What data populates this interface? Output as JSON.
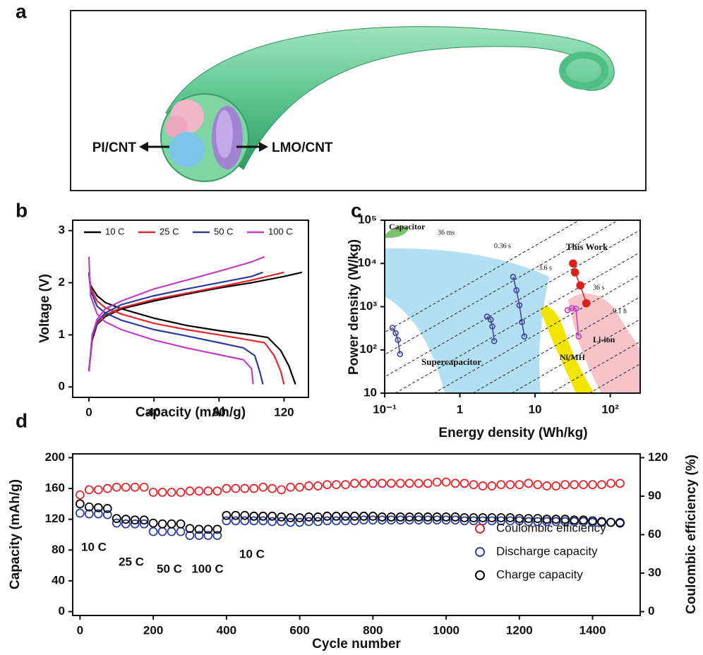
{
  "illustration": {
    "label": "a",
    "texts": [
      "PI/CNT",
      "LMO/CNT"
    ]
  },
  "chart_data": [
    {
      "type": "line",
      "panel": "b",
      "xlabel": "Capacity (mAh/g)",
      "ylabel": "Voltage (V)",
      "xlim": [
        -10,
        135
      ],
      "ylim": [
        -0.2,
        3.2
      ],
      "xticks": [
        0,
        40,
        80,
        120
      ],
      "yticks": [
        0,
        1,
        2,
        3
      ],
      "legend": "upper left",
      "series": [
        {
          "name": "10 C",
          "color": "#000000",
          "curves": [
            {
              "x": [
                0,
                1,
                5,
                10,
                20,
                40,
                60,
                80,
                100,
                110,
                118,
                123,
                127
              ],
              "values": [
                2.2,
                1.95,
                1.75,
                1.62,
                1.5,
                1.32,
                1.18,
                1.08,
                1.0,
                0.95,
                0.7,
                0.4,
                0.05
              ]
            },
            {
              "x": [
                0,
                2,
                5,
                10,
                20,
                40,
                60,
                80,
                100,
                120,
                131
              ],
              "values": [
                0.3,
                0.9,
                1.2,
                1.35,
                1.5,
                1.65,
                1.78,
                1.9,
                2.0,
                2.12,
                2.2
              ]
            }
          ]
        },
        {
          "name": "25 C",
          "color": "#e3262a",
          "curves": [
            {
              "x": [
                0,
                1,
                5,
                10,
                20,
                40,
                60,
                80,
                95,
                108,
                114,
                118,
                120
              ],
              "values": [
                2.2,
                1.9,
                1.65,
                1.52,
                1.4,
                1.22,
                1.1,
                1.0,
                0.92,
                0.85,
                0.6,
                0.3,
                0.05
              ]
            },
            {
              "x": [
                0,
                2,
                5,
                10,
                20,
                40,
                60,
                80,
                100,
                120
              ],
              "values": [
                0.3,
                0.95,
                1.22,
                1.38,
                1.52,
                1.68,
                1.8,
                1.92,
                2.05,
                2.2
              ]
            }
          ]
        },
        {
          "name": "50 C",
          "color": "#2b3c9a",
          "curves": [
            {
              "x": [
                0,
                1,
                5,
                10,
                20,
                40,
                60,
                80,
                95,
                102,
                105,
                107
              ],
              "values": [
                2.2,
                1.85,
                1.55,
                1.42,
                1.28,
                1.1,
                0.98,
                0.85,
                0.75,
                0.6,
                0.3,
                0.05
              ]
            },
            {
              "x": [
                0,
                2,
                5,
                10,
                20,
                40,
                60,
                80,
                100,
                107
              ],
              "values": [
                0.3,
                0.95,
                1.25,
                1.42,
                1.58,
                1.75,
                1.88,
                2.0,
                2.12,
                2.2
              ]
            }
          ]
        },
        {
          "name": "100 C",
          "color": "#c13ec4",
          "curves": [
            {
              "x": [
                0,
                1,
                5,
                10,
                20,
                40,
                60,
                80,
                95,
                100,
                101
              ],
              "values": [
                2.5,
                1.75,
                1.4,
                1.25,
                1.1,
                0.9,
                0.75,
                0.62,
                0.52,
                0.35,
                0.05
              ]
            },
            {
              "x": [
                0,
                2,
                5,
                10,
                20,
                40,
                60,
                80,
                100,
                108
              ],
              "values": [
                0.3,
                1.0,
                1.3,
                1.5,
                1.65,
                1.88,
                2.05,
                2.22,
                2.4,
                2.5
              ]
            }
          ]
        }
      ]
    },
    {
      "type": "scatter",
      "panel": "c",
      "xlabel": "Energy density (Wh/kg)",
      "ylabel": "Power density (W/kg)",
      "xscale": "log",
      "yscale": "log",
      "xlim": [
        0.1,
        250
      ],
      "ylim": [
        10,
        100000
      ],
      "xticks": [
        {
          "value": 0.1,
          "label": "10⁻¹"
        },
        1,
        10,
        {
          "value": 100,
          "label": "10²"
        }
      ],
      "yticks": [
        10,
        {
          "value": 100,
          "label": "10²"
        },
        {
          "value": 1000,
          "label": "10³"
        },
        {
          "value": 10000,
          "label": "10⁴"
        },
        {
          "value": 100000,
          "label": "10⁵"
        }
      ],
      "regions": [
        "Capacitor",
        "Supercapacitor",
        "Ni/MH",
        "Li-ion"
      ],
      "time_labels": [
        "36 ms",
        "0.36 s",
        "3.6 s",
        "36 s",
        "0.1 h"
      ],
      "series": [
        {
          "color": "#3b3f9a",
          "marker": "open",
          "connected": true,
          "x": [
            0.127,
            0.14,
            0.15,
            0.16
          ],
          "values": [
            325,
            245,
            170,
            80
          ]
        },
        {
          "color": "#3b3f9a",
          "marker": "open",
          "connected": true,
          "x": [
            2.3,
            2.57,
            2.7,
            2.86
          ],
          "values": [
            590,
            500,
            350,
            160
          ]
        },
        {
          "color": "#3b3f9a",
          "marker": "open",
          "connected": true,
          "x": [
            5.1,
            5.65,
            6.2,
            6.7,
            7.2
          ],
          "values": [
            4900,
            2400,
            1080,
            440,
            205
          ]
        },
        {
          "color": "#c03cc0",
          "marker": "open",
          "connected": true,
          "x": [
            27,
            31,
            35,
            38
          ],
          "values": [
            830,
            930,
            900,
            205
          ]
        },
        {
          "name": "This Work",
          "color": "#e0201b",
          "marker": "filled",
          "connected": true,
          "x": [
            32,
            34,
            40,
            48
          ],
          "values": [
            10000,
            6200,
            3100,
            1200
          ]
        }
      ]
    },
    {
      "type": "scatter",
      "panel": "d",
      "xlabel": "Cycle number",
      "ylabel": "Capacity (mAh/g)",
      "y2label": "Coulombic efficiency (%)",
      "xlim": [
        -20,
        1530
      ],
      "ylim": [
        -5,
        205
      ],
      "y2lim": [
        -3,
        123
      ],
      "xticks": [
        0,
        200,
        400,
        600,
        800,
        1000,
        1200,
        1400
      ],
      "yticks": [
        0,
        40,
        80,
        120,
        160,
        200
      ],
      "y2ticks": [
        0,
        30,
        60,
        90,
        120
      ],
      "legend": "lower right",
      "annotations": [
        "10 C",
        "25 C",
        "50 C",
        "100 C",
        "10 C"
      ],
      "x": [
        0,
        25,
        50,
        75,
        100,
        125,
        150,
        175,
        200,
        225,
        250,
        275,
        300,
        325,
        350,
        375,
        400,
        425,
        450,
        475,
        500,
        525,
        550,
        575,
        600,
        625,
        650,
        675,
        700,
        725,
        750,
        775,
        800,
        825,
        850,
        875,
        900,
        925,
        950,
        975,
        1000,
        1025,
        1050,
        1075,
        1100,
        1125,
        1150,
        1175,
        1200,
        1225,
        1250,
        1275,
        1300,
        1325,
        1350,
        1375,
        1400,
        1425,
        1450,
        1475
      ],
      "series": [
        {
          "name": "Coulombic efficiency",
          "color": "#e8242b",
          "axis": "y2",
          "values": [
            91,
            95,
            95,
            96,
            97,
            97,
            97,
            97,
            93,
            93,
            93,
            93,
            94,
            94,
            94,
            94,
            96,
            96,
            96,
            96,
            97,
            96,
            95,
            97,
            97,
            98,
            98,
            99,
            99,
            99,
            100,
            100,
            100,
            100,
            100,
            100,
            100,
            100,
            100,
            101,
            101,
            100,
            100,
            99,
            98,
            98,
            99,
            99,
            99,
            100,
            99,
            98,
            98,
            99,
            99,
            99,
            99,
            99,
            100,
            100
          ]
        },
        {
          "name": "Discharge capacity",
          "color": "#2a3f9e",
          "values": [
            128,
            127,
            127,
            126,
            115,
            114,
            114,
            114,
            104,
            104,
            104,
            104,
            99,
            99,
            99,
            99,
            118,
            118,
            118,
            118,
            118,
            117,
            117,
            116,
            116,
            117,
            117,
            118,
            118,
            118,
            118,
            119,
            119,
            119,
            119,
            119,
            119,
            119,
            119,
            119,
            119,
            119,
            118,
            118,
            118,
            118,
            118,
            118,
            118,
            117,
            117,
            117,
            117,
            117,
            117,
            117,
            116,
            116,
            116,
            116
          ]
        },
        {
          "name": "Charge capacity",
          "color": "#000000",
          "values": [
            140,
            136,
            135,
            134,
            121,
            120,
            119,
            119,
            115,
            114,
            114,
            114,
            108,
            107,
            107,
            107,
            125,
            125,
            125,
            124,
            124,
            124,
            123,
            122,
            122,
            123,
            123,
            124,
            124,
            124,
            124,
            124,
            124,
            123,
            123,
            123,
            123,
            123,
            123,
            123,
            123,
            123,
            122,
            122,
            122,
            122,
            122,
            122,
            121,
            121,
            121,
            120,
            120,
            120,
            119,
            119,
            118,
            117,
            116,
            115
          ]
        }
      ]
    }
  ]
}
